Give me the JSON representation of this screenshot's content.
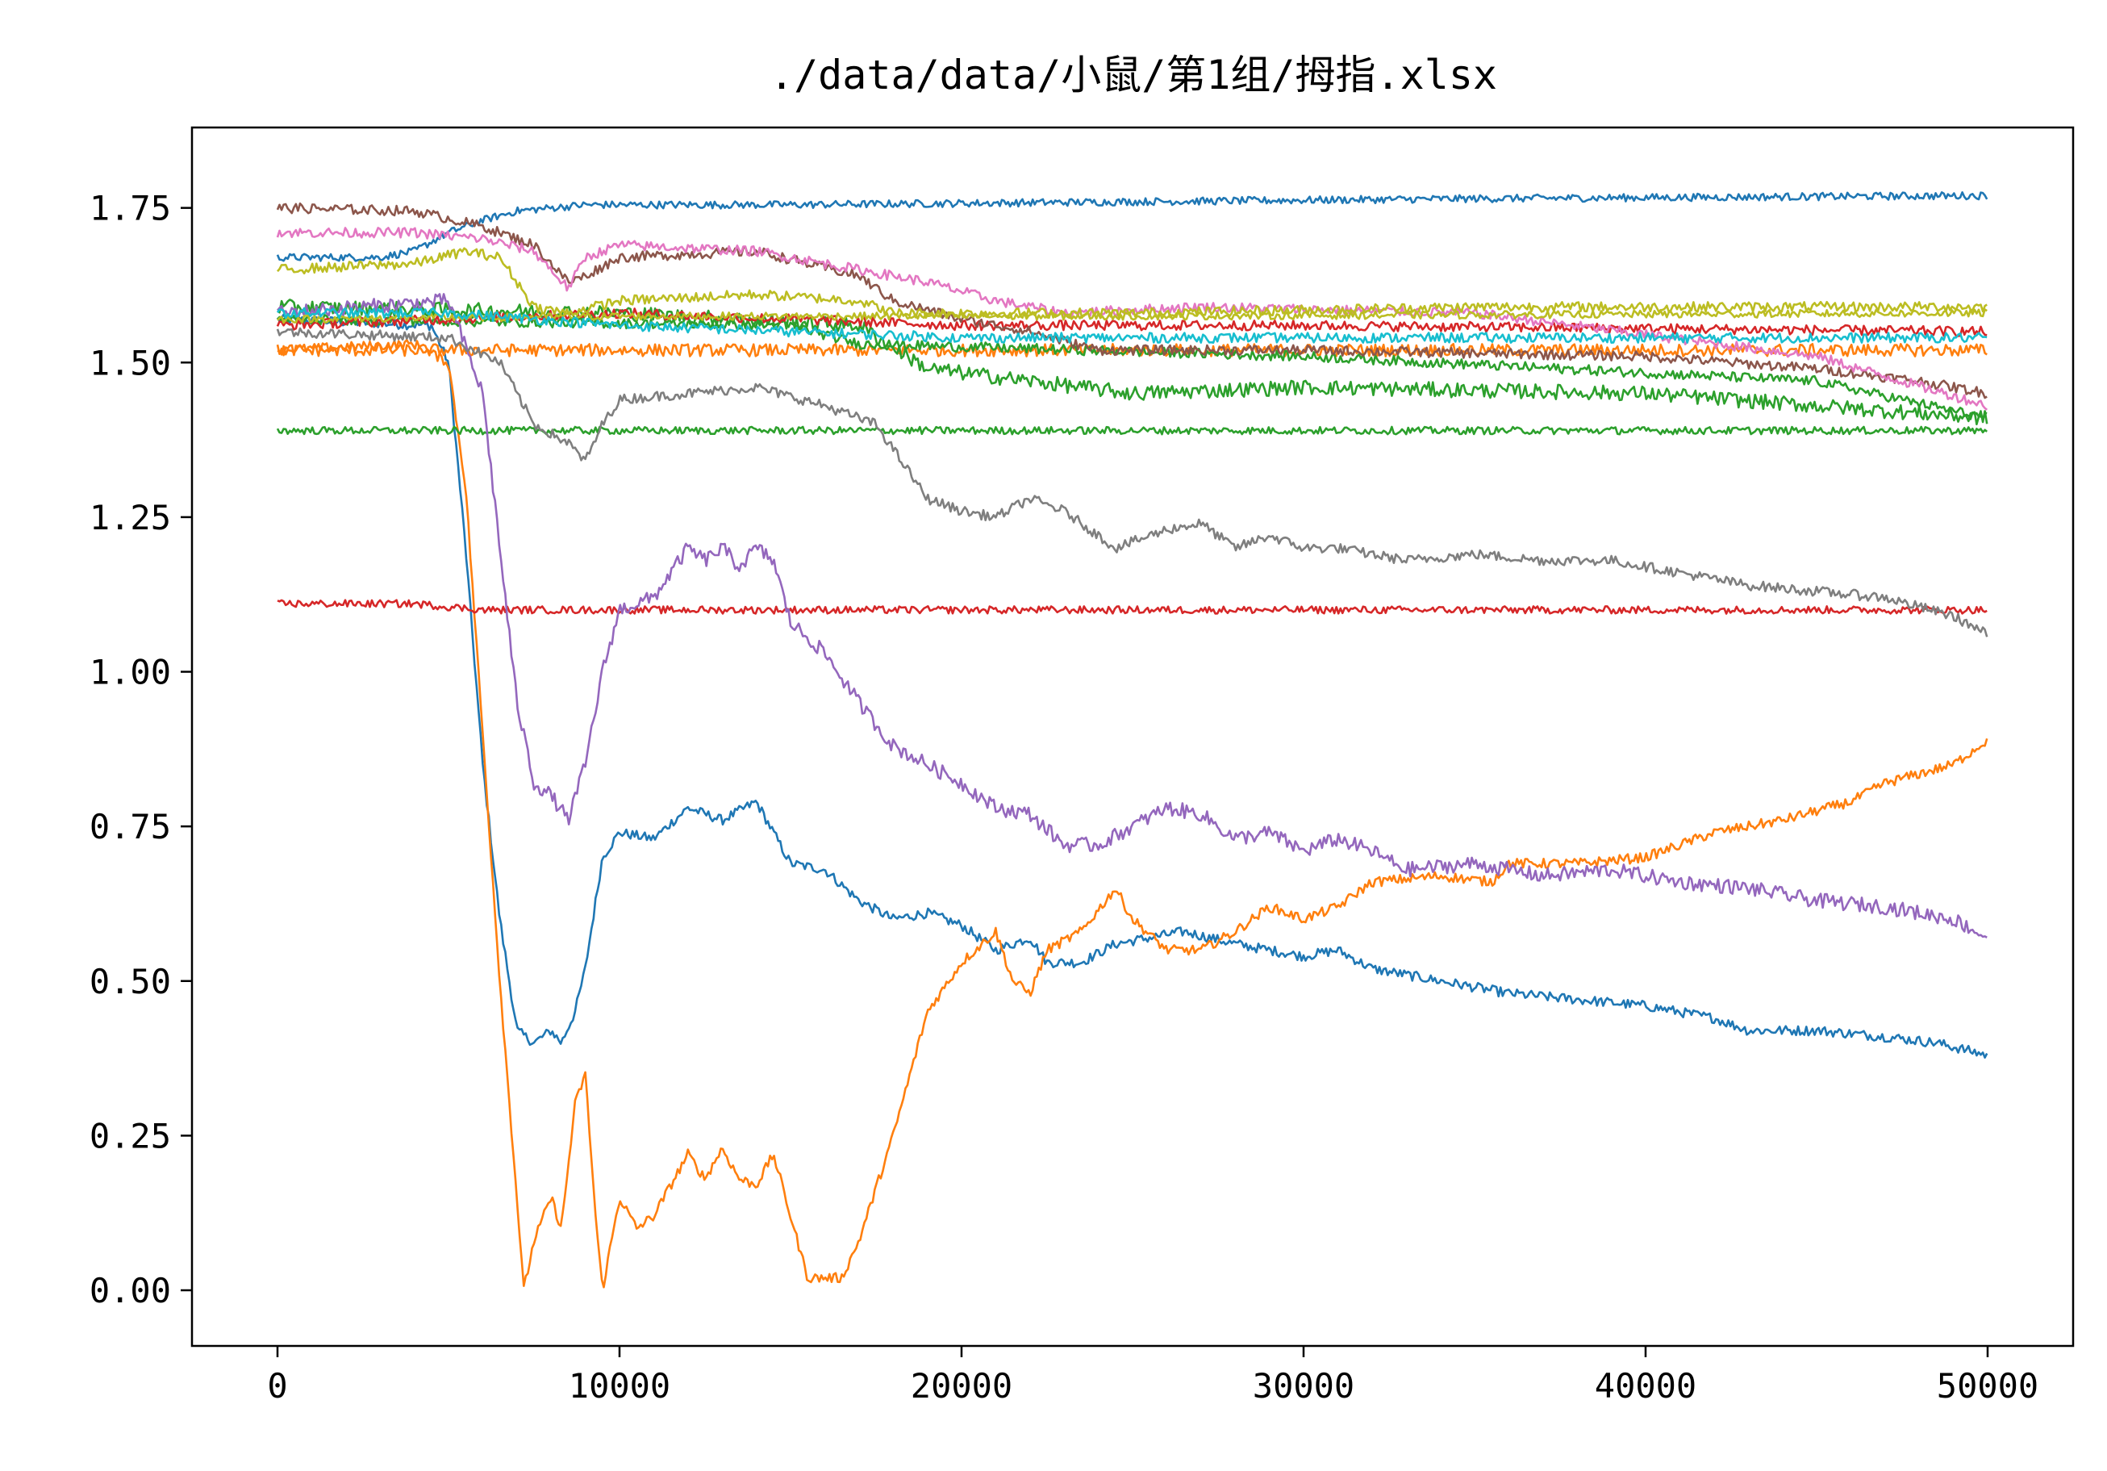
{
  "chart_data": {
    "type": "line",
    "title": "./data/data/小鼠/第1组/拇指.xlsx",
    "xlabel": "",
    "ylabel": "",
    "xlim": [
      -2500,
      52500
    ],
    "ylim": [
      -0.09,
      1.88
    ],
    "xticks": [
      0,
      10000,
      20000,
      30000,
      40000,
      50000
    ],
    "xtick_labels": [
      "0",
      "10000",
      "20000",
      "30000",
      "40000",
      "50000"
    ],
    "yticks": [
      0.0,
      0.25,
      0.5,
      0.75,
      1.0,
      1.25,
      1.5,
      1.75
    ],
    "ytick_labels": [
      "0.00",
      "0.25",
      "0.50",
      "0.75",
      "1.00",
      "1.25",
      "1.50",
      "1.75"
    ],
    "grid": false,
    "legend": "none",
    "series": [
      {
        "color": "#1f77b4",
        "noise": 0.008,
        "points": [
          [
            0,
            1.57
          ],
          [
            4500,
            1.56
          ],
          [
            5000,
            1.5
          ],
          [
            5500,
            1.2
          ],
          [
            6000,
            0.85
          ],
          [
            6500,
            0.6
          ],
          [
            7000,
            0.42
          ],
          [
            7500,
            0.4
          ],
          [
            8000,
            0.42
          ],
          [
            8300,
            0.4
          ],
          [
            8700,
            0.45
          ],
          [
            9000,
            0.52
          ],
          [
            9500,
            0.7
          ],
          [
            10000,
            0.74
          ],
          [
            11000,
            0.73
          ],
          [
            12000,
            0.78
          ],
          [
            12500,
            0.77
          ],
          [
            13000,
            0.76
          ],
          [
            14000,
            0.79
          ],
          [
            14500,
            0.74
          ],
          [
            15000,
            0.69
          ],
          [
            16000,
            0.68
          ],
          [
            17000,
            0.63
          ],
          [
            18000,
            0.6
          ],
          [
            19000,
            0.61
          ],
          [
            20000,
            0.59
          ],
          [
            21000,
            0.55
          ],
          [
            22000,
            0.57
          ],
          [
            22500,
            0.53
          ],
          [
            23500,
            0.53
          ],
          [
            24500,
            0.56
          ],
          [
            25500,
            0.57
          ],
          [
            26500,
            0.58
          ],
          [
            28000,
            0.56
          ],
          [
            30000,
            0.54
          ],
          [
            31000,
            0.55
          ],
          [
            32000,
            0.52
          ],
          [
            33000,
            0.51
          ],
          [
            35000,
            0.49
          ],
          [
            36000,
            0.48
          ],
          [
            38000,
            0.47
          ],
          [
            40000,
            0.46
          ],
          [
            42000,
            0.44
          ],
          [
            43000,
            0.42
          ],
          [
            45000,
            0.42
          ],
          [
            47000,
            0.41
          ],
          [
            48500,
            0.4
          ],
          [
            50000,
            0.38
          ]
        ]
      },
      {
        "color": "#1f77b4",
        "noise": 0.006,
        "points": [
          [
            0,
            1.67
          ],
          [
            3000,
            1.67
          ],
          [
            4000,
            1.68
          ],
          [
            5000,
            1.71
          ],
          [
            6000,
            1.73
          ],
          [
            7000,
            1.745
          ],
          [
            9000,
            1.755
          ],
          [
            15000,
            1.755
          ],
          [
            25000,
            1.76
          ],
          [
            35000,
            1.765
          ],
          [
            50000,
            1.77
          ]
        ]
      },
      {
        "color": "#ff7f0e",
        "noise": 0.008,
        "points": [
          [
            0,
            1.52
          ],
          [
            4000,
            1.53
          ],
          [
            5000,
            1.5
          ],
          [
            5500,
            1.3
          ],
          [
            6000,
            0.9
          ],
          [
            6500,
            0.5
          ],
          [
            7000,
            0.15
          ],
          [
            7200,
            0.0
          ],
          [
            7500,
            0.08
          ],
          [
            8000,
            0.15
          ],
          [
            8300,
            0.1
          ],
          [
            8700,
            0.3
          ],
          [
            9000,
            0.35
          ],
          [
            9300,
            0.12
          ],
          [
            9500,
            0.0
          ],
          [
            10000,
            0.15
          ],
          [
            10500,
            0.1
          ],
          [
            11000,
            0.12
          ],
          [
            12000,
            0.22
          ],
          [
            12500,
            0.18
          ],
          [
            13000,
            0.23
          ],
          [
            13500,
            0.18
          ],
          [
            14000,
            0.17
          ],
          [
            14500,
            0.22
          ],
          [
            15000,
            0.12
          ],
          [
            15500,
            0.02
          ],
          [
            16000,
            0.02
          ],
          [
            16500,
            0.02
          ],
          [
            17000,
            0.08
          ],
          [
            18000,
            0.25
          ],
          [
            19000,
            0.45
          ],
          [
            20000,
            0.53
          ],
          [
            21000,
            0.58
          ],
          [
            21500,
            0.5
          ],
          [
            22000,
            0.48
          ],
          [
            22500,
            0.55
          ],
          [
            23500,
            0.58
          ],
          [
            24500,
            0.65
          ],
          [
            25000,
            0.6
          ],
          [
            26000,
            0.55
          ],
          [
            27000,
            0.55
          ],
          [
            28000,
            0.58
          ],
          [
            29000,
            0.62
          ],
          [
            30000,
            0.6
          ],
          [
            31000,
            0.62
          ],
          [
            32000,
            0.66
          ],
          [
            34000,
            0.67
          ],
          [
            35500,
            0.66
          ],
          [
            36000,
            0.69
          ],
          [
            38000,
            0.69
          ],
          [
            40000,
            0.7
          ],
          [
            42000,
            0.74
          ],
          [
            44000,
            0.76
          ],
          [
            46000,
            0.79
          ],
          [
            47000,
            0.82
          ],
          [
            49000,
            0.85
          ],
          [
            50000,
            0.89
          ]
        ]
      },
      {
        "color": "#ff7f0e",
        "noise": 0.01,
        "points": [
          [
            0,
            1.52
          ],
          [
            10000,
            1.52
          ],
          [
            30000,
            1.52
          ],
          [
            50000,
            1.52
          ]
        ]
      },
      {
        "color": "#2ca02c",
        "noise": 0.006,
        "points": [
          [
            0,
            1.39
          ],
          [
            25000,
            1.39
          ],
          [
            50000,
            1.39
          ]
        ]
      },
      {
        "color": "#2ca02c",
        "noise": 0.012,
        "points": [
          [
            0,
            1.59
          ],
          [
            10000,
            1.58
          ],
          [
            17000,
            1.56
          ],
          [
            19000,
            1.49
          ],
          [
            22000,
            1.47
          ],
          [
            25000,
            1.45
          ],
          [
            30000,
            1.46
          ],
          [
            40000,
            1.45
          ],
          [
            50000,
            1.41
          ]
        ]
      },
      {
        "color": "#2ca02c",
        "noise": 0.008,
        "points": [
          [
            0,
            1.57
          ],
          [
            15000,
            1.56
          ],
          [
            17000,
            1.53
          ],
          [
            30000,
            1.51
          ],
          [
            45000,
            1.47
          ],
          [
            50000,
            1.41
          ]
        ]
      },
      {
        "color": "#d62728",
        "noise": 0.006,
        "points": [
          [
            0,
            1.11
          ],
          [
            4000,
            1.11
          ],
          [
            6000,
            1.1
          ],
          [
            25000,
            1.1
          ],
          [
            50000,
            1.1
          ]
        ]
      },
      {
        "color": "#d62728",
        "noise": 0.008,
        "points": [
          [
            0,
            1.56
          ],
          [
            10000,
            1.58
          ],
          [
            20000,
            1.56
          ],
          [
            30000,
            1.56
          ],
          [
            50000,
            1.55
          ]
        ]
      },
      {
        "color": "#9467bd",
        "noise": 0.012,
        "points": [
          [
            0,
            1.58
          ],
          [
            5000,
            1.6
          ],
          [
            6000,
            1.45
          ],
          [
            6500,
            1.2
          ],
          [
            7000,
            0.95
          ],
          [
            7500,
            0.82
          ],
          [
            8000,
            0.8
          ],
          [
            8500,
            0.76
          ],
          [
            9000,
            0.85
          ],
          [
            9500,
            1.0
          ],
          [
            10000,
            1.1
          ],
          [
            11000,
            1.12
          ],
          [
            12000,
            1.2
          ],
          [
            12500,
            1.18
          ],
          [
            13000,
            1.2
          ],
          [
            13500,
            1.17
          ],
          [
            14000,
            1.2
          ],
          [
            14500,
            1.18
          ],
          [
            15000,
            1.08
          ],
          [
            16000,
            1.03
          ],
          [
            17000,
            0.95
          ],
          [
            18000,
            0.88
          ],
          [
            19000,
            0.85
          ],
          [
            20000,
            0.82
          ],
          [
            21000,
            0.78
          ],
          [
            22000,
            0.77
          ],
          [
            23000,
            0.72
          ],
          [
            24000,
            0.72
          ],
          [
            25000,
            0.75
          ],
          [
            26000,
            0.78
          ],
          [
            27000,
            0.77
          ],
          [
            28000,
            0.73
          ],
          [
            29000,
            0.74
          ],
          [
            30000,
            0.71
          ],
          [
            31000,
            0.73
          ],
          [
            32000,
            0.71
          ],
          [
            33000,
            0.68
          ],
          [
            35000,
            0.69
          ],
          [
            37000,
            0.67
          ],
          [
            39000,
            0.68
          ],
          [
            41000,
            0.66
          ],
          [
            43000,
            0.65
          ],
          [
            45000,
            0.63
          ],
          [
            47000,
            0.62
          ],
          [
            49000,
            0.6
          ],
          [
            50000,
            0.57
          ]
        ]
      },
      {
        "color": "#8c564b",
        "noise": 0.008,
        "points": [
          [
            0,
            1.75
          ],
          [
            4000,
            1.745
          ],
          [
            6000,
            1.72
          ],
          [
            7500,
            1.69
          ],
          [
            8500,
            1.63
          ],
          [
            9000,
            1.64
          ],
          [
            10000,
            1.67
          ],
          [
            14000,
            1.68
          ],
          [
            17000,
            1.64
          ],
          [
            18000,
            1.6
          ],
          [
            20000,
            1.57
          ],
          [
            22000,
            1.55
          ],
          [
            24000,
            1.52
          ],
          [
            30000,
            1.52
          ],
          [
            40000,
            1.51
          ],
          [
            45000,
            1.49
          ],
          [
            48000,
            1.47
          ],
          [
            50000,
            1.45
          ]
        ]
      },
      {
        "color": "#e377c2",
        "noise": 0.008,
        "points": [
          [
            0,
            1.71
          ],
          [
            4000,
            1.71
          ],
          [
            6000,
            1.7
          ],
          [
            7500,
            1.68
          ],
          [
            8500,
            1.62
          ],
          [
            9000,
            1.67
          ],
          [
            10000,
            1.69
          ],
          [
            14000,
            1.68
          ],
          [
            18000,
            1.64
          ],
          [
            19000,
            1.63
          ],
          [
            21000,
            1.6
          ],
          [
            23000,
            1.58
          ],
          [
            27000,
            1.59
          ],
          [
            35000,
            1.58
          ],
          [
            45000,
            1.51
          ],
          [
            50000,
            1.43
          ]
        ]
      },
      {
        "color": "#7f7f7f",
        "noise": 0.008,
        "points": [
          [
            0,
            1.55
          ],
          [
            5000,
            1.54
          ],
          [
            6500,
            1.5
          ],
          [
            7500,
            1.4
          ],
          [
            8500,
            1.37
          ],
          [
            9000,
            1.34
          ],
          [
            9500,
            1.4
          ],
          [
            10000,
            1.44
          ],
          [
            12000,
            1.45
          ],
          [
            14000,
            1.46
          ],
          [
            16000,
            1.43
          ],
          [
            17500,
            1.4
          ],
          [
            18000,
            1.36
          ],
          [
            19000,
            1.28
          ],
          [
            20000,
            1.26
          ],
          [
            21000,
            1.25
          ],
          [
            22000,
            1.28
          ],
          [
            23000,
            1.26
          ],
          [
            24500,
            1.2
          ],
          [
            26000,
            1.23
          ],
          [
            27000,
            1.24
          ],
          [
            28000,
            1.2
          ],
          [
            29000,
            1.22
          ],
          [
            30000,
            1.2
          ],
          [
            31000,
            1.2
          ],
          [
            33000,
            1.18
          ],
          [
            35000,
            1.19
          ],
          [
            37000,
            1.18
          ],
          [
            39000,
            1.18
          ],
          [
            41000,
            1.16
          ],
          [
            43000,
            1.14
          ],
          [
            45000,
            1.13
          ],
          [
            47000,
            1.12
          ],
          [
            49000,
            1.09
          ],
          [
            50000,
            1.06
          ]
        ]
      },
      {
        "color": "#bcbd22",
        "noise": 0.008,
        "points": [
          [
            0,
            1.65
          ],
          [
            4000,
            1.66
          ],
          [
            5500,
            1.68
          ],
          [
            6500,
            1.67
          ],
          [
            7500,
            1.59
          ],
          [
            8500,
            1.58
          ],
          [
            10000,
            1.6
          ],
          [
            14000,
            1.61
          ],
          [
            17000,
            1.6
          ],
          [
            18000,
            1.58
          ],
          [
            25000,
            1.58
          ],
          [
            35000,
            1.59
          ],
          [
            45000,
            1.59
          ],
          [
            50000,
            1.59
          ]
        ]
      },
      {
        "color": "#bcbd22",
        "noise": 0.006,
        "points": [
          [
            0,
            1.57
          ],
          [
            10000,
            1.575
          ],
          [
            25000,
            1.575
          ],
          [
            50000,
            1.58
          ]
        ]
      },
      {
        "color": "#17becf",
        "noise": 0.008,
        "points": [
          [
            0,
            1.58
          ],
          [
            5000,
            1.58
          ],
          [
            10000,
            1.56
          ],
          [
            20000,
            1.54
          ],
          [
            30000,
            1.54
          ],
          [
            50000,
            1.54
          ]
        ]
      }
    ]
  }
}
